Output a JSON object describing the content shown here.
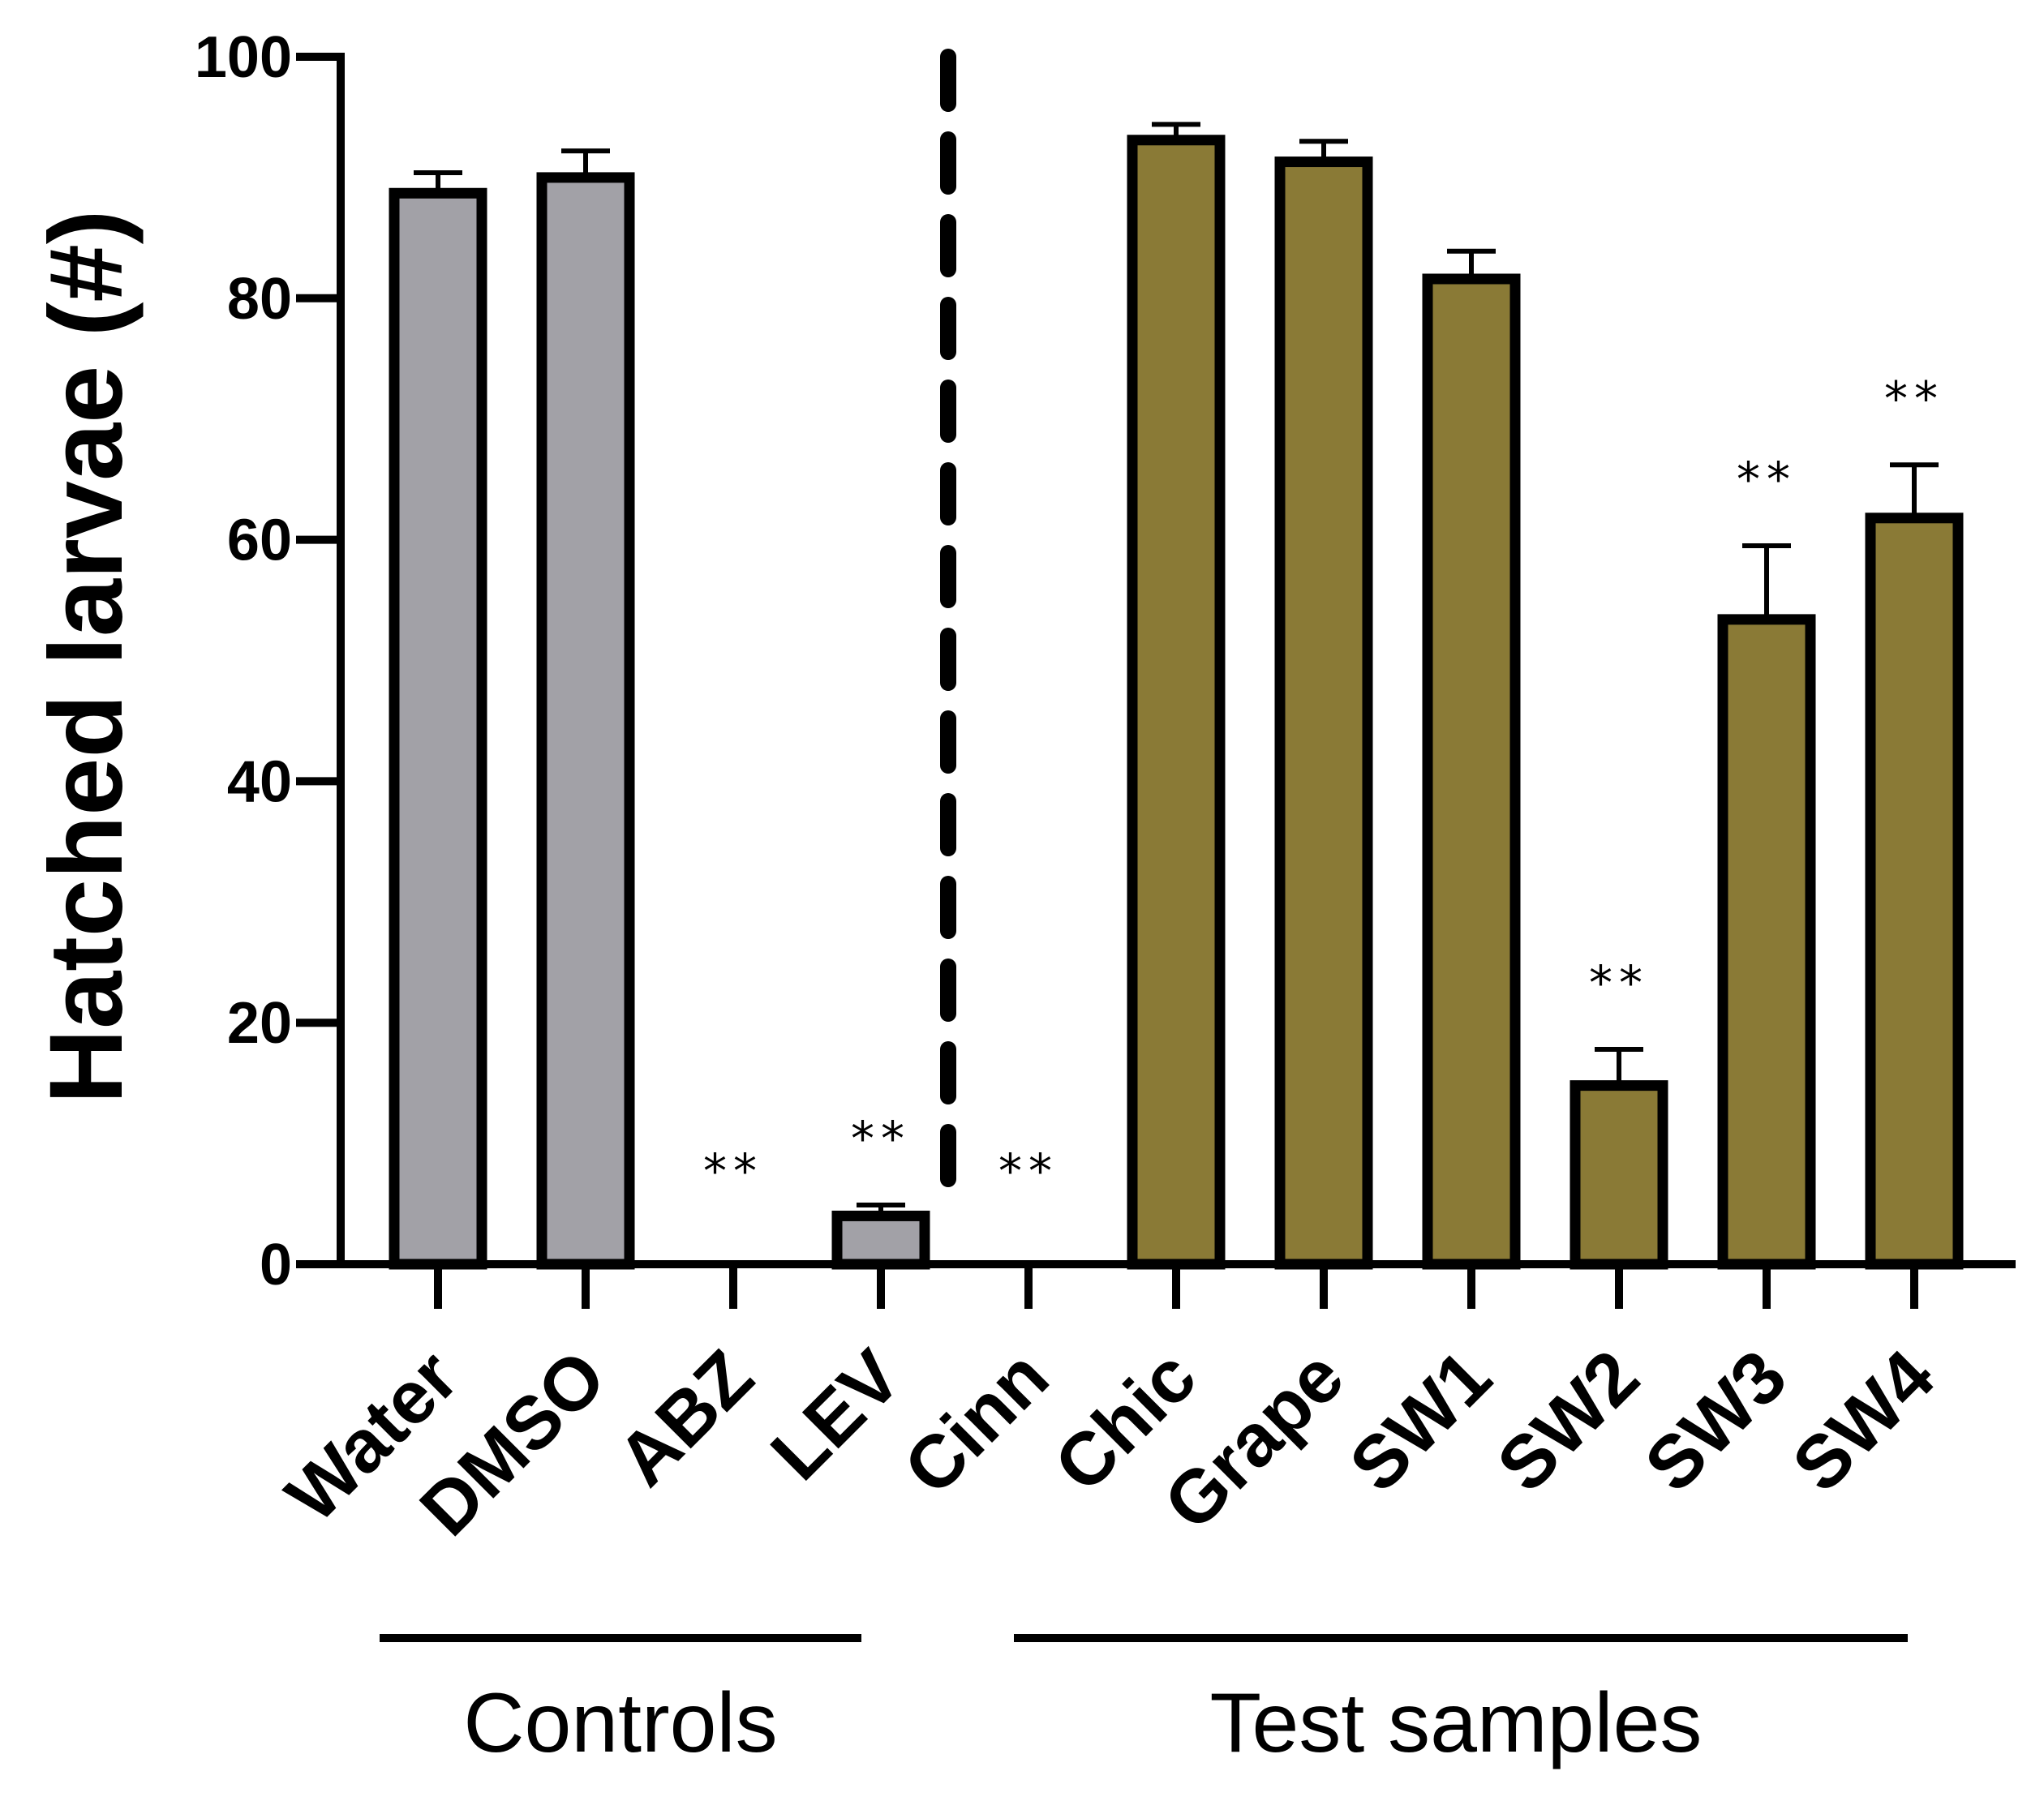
{
  "chart_data": {
    "type": "bar",
    "title": "",
    "xlabel": "",
    "ylabel": "Hatched larvae (#)",
    "ylim": [
      0,
      100
    ],
    "yticks": [
      0,
      20,
      40,
      60,
      80,
      100
    ],
    "categories": [
      "Water",
      "DMSO",
      "ABZ",
      "LEV",
      "Cinn",
      "Chic",
      "Grape",
      "SW1",
      "SW2",
      "SW3",
      "SW4"
    ],
    "values": [
      88.7,
      90.0,
      0,
      4.0,
      0,
      93.1,
      91.3,
      81.6,
      14.8,
      53.4,
      61.8
    ],
    "errors": [
      1.7,
      2.2,
      0,
      0.9,
      0,
      1.3,
      1.7,
      2.3,
      3.0,
      6.1,
      4.4
    ],
    "significance": [
      "",
      "",
      "**",
      "**",
      "**",
      "",
      "",
      "",
      "**",
      "**",
      "**"
    ],
    "groups": [
      {
        "label": "Controls",
        "categories": [
          "Water",
          "DMSO",
          "ABZ",
          "LEV"
        ],
        "color": "#a2a1a7"
      },
      {
        "label": "Test samples",
        "categories": [
          "Cinn",
          "Chic",
          "Grape",
          "SW1",
          "SW2",
          "SW3",
          "SW4"
        ],
        "color": "#8a7a36"
      }
    ],
    "divider": "dashed line between LEV and Cinn",
    "grid": false
  }
}
